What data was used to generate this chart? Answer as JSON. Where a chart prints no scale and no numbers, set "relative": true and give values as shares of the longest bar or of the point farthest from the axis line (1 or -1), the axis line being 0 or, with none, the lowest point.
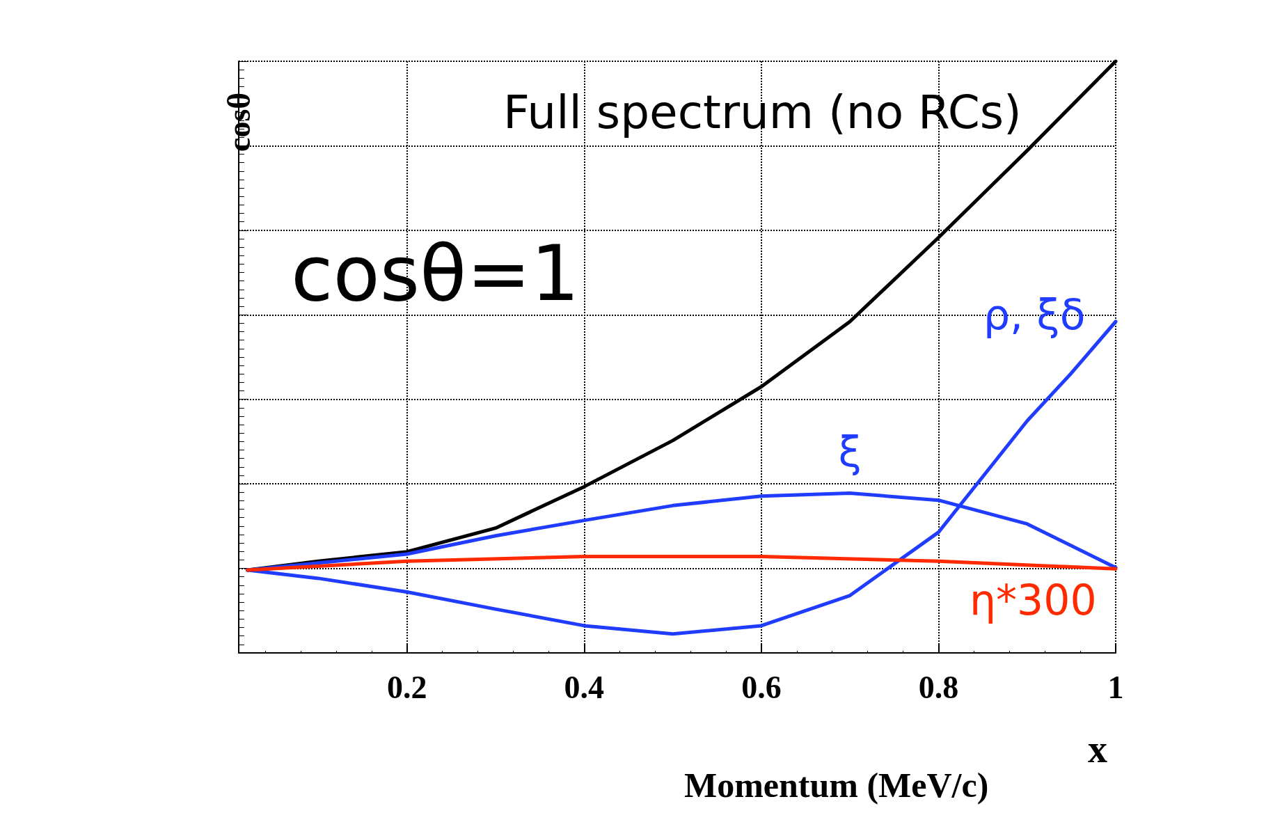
{
  "chart_data": {
    "type": "line",
    "relative": true,
    "xlabel": "x",
    "ylabel": "cosθ",
    "xlim": [
      0.01,
      1
    ],
    "xticks": [
      0.2,
      0.4,
      0.6,
      0.8,
      1
    ],
    "grid": true,
    "marker": "none",
    "line_style": "solid",
    "annotations": [
      "Full spectrum (no RCs)",
      "cosθ=1",
      "Momentum (MeV/c)"
    ],
    "series": [
      {
        "color": "#000000",
        "x": [
          0.02,
          0.1,
          0.2,
          0.3,
          0.4,
          0.5,
          0.6,
          0.7,
          0.8,
          0.9,
          1
        ],
        "values": [
          0.14,
          0.155,
          0.171,
          0.211,
          0.281,
          0.359,
          0.45,
          0.56,
          0.702,
          0.849,
          1
        ]
      },
      {
        "name": "ξ",
        "color": "#1f3cff",
        "x": [
          0.02,
          0.2,
          0.3,
          0.4,
          0.5,
          0.6,
          0.7,
          0.8,
          0.9,
          1
        ],
        "values": [
          0.14,
          0.167,
          0.198,
          0.224,
          0.249,
          0.265,
          0.27,
          0.258,
          0.218,
          0.144
        ]
      },
      {
        "name": "ρ, ξδ",
        "color": "#1f3cff",
        "x": [
          0.02,
          0.1,
          0.2,
          0.3,
          0.4,
          0.5,
          0.6,
          0.7,
          0.8,
          0.85,
          0.9,
          0.95,
          1
        ],
        "values": [
          0.14,
          0.126,
          0.103,
          0.074,
          0.046,
          0.032,
          0.046,
          0.097,
          0.204,
          0.298,
          0.392,
          0.473,
          0.56
        ]
      },
      {
        "name": "η*300",
        "color": "#ff2a00",
        "x": [
          0.02,
          0.2,
          0.4,
          0.6,
          0.8,
          1
        ],
        "values": [
          0.14,
          0.155,
          0.163,
          0.163,
          0.155,
          0.142
        ]
      }
    ]
  }
}
